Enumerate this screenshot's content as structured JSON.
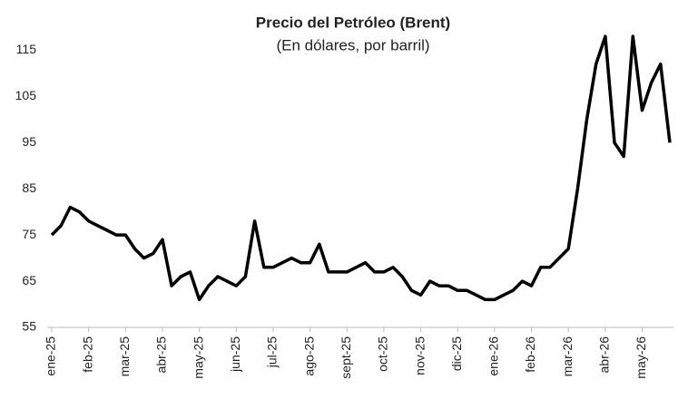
{
  "chart_data": {
    "type": "line",
    "title": "Precio del Petróleo (Brent)",
    "subtitle": "(En dólares, por barril)",
    "categories": [
      "ene-25",
      null,
      null,
      null,
      "feb-25",
      null,
      null,
      null,
      "mar-25",
      null,
      null,
      null,
      "abr-25",
      null,
      null,
      null,
      "may-25",
      null,
      null,
      null,
      "jun-25",
      null,
      null,
      null,
      "jul-25",
      null,
      null,
      null,
      "ago-25",
      null,
      null,
      null,
      "sept-25",
      null,
      null,
      null,
      "oct-25",
      null,
      null,
      null,
      "nov-25",
      null,
      null,
      null,
      "dic-25",
      null,
      null,
      null,
      "ene-26",
      null,
      null,
      null,
      "feb-26",
      null,
      null,
      null,
      "mar-26",
      null,
      null,
      null,
      "abr-26",
      null,
      null,
      null,
      "may-26",
      null,
      null,
      null
    ],
    "series": [
      {
        "name": "Brent",
        "color": "#000000",
        "values": [
          75,
          77,
          81,
          80,
          78,
          77,
          76,
          75,
          75,
          72,
          70,
          71,
          74,
          64,
          66,
          67,
          61,
          64,
          66,
          65,
          64,
          66,
          78,
          68,
          68,
          69,
          70,
          69,
          69,
          73,
          67,
          67,
          67,
          68,
          69,
          67,
          67,
          68,
          66,
          63,
          62,
          65,
          64,
          64,
          63,
          63,
          62,
          61,
          61,
          62,
          63,
          65,
          64,
          68,
          68,
          70,
          72,
          85,
          100,
          112,
          118,
          95,
          92,
          118,
          102,
          108,
          112,
          95
        ]
      }
    ],
    "ylim": [
      55,
      119
    ],
    "yticks": [
      55,
      65,
      75,
      85,
      95,
      105,
      115
    ]
  }
}
